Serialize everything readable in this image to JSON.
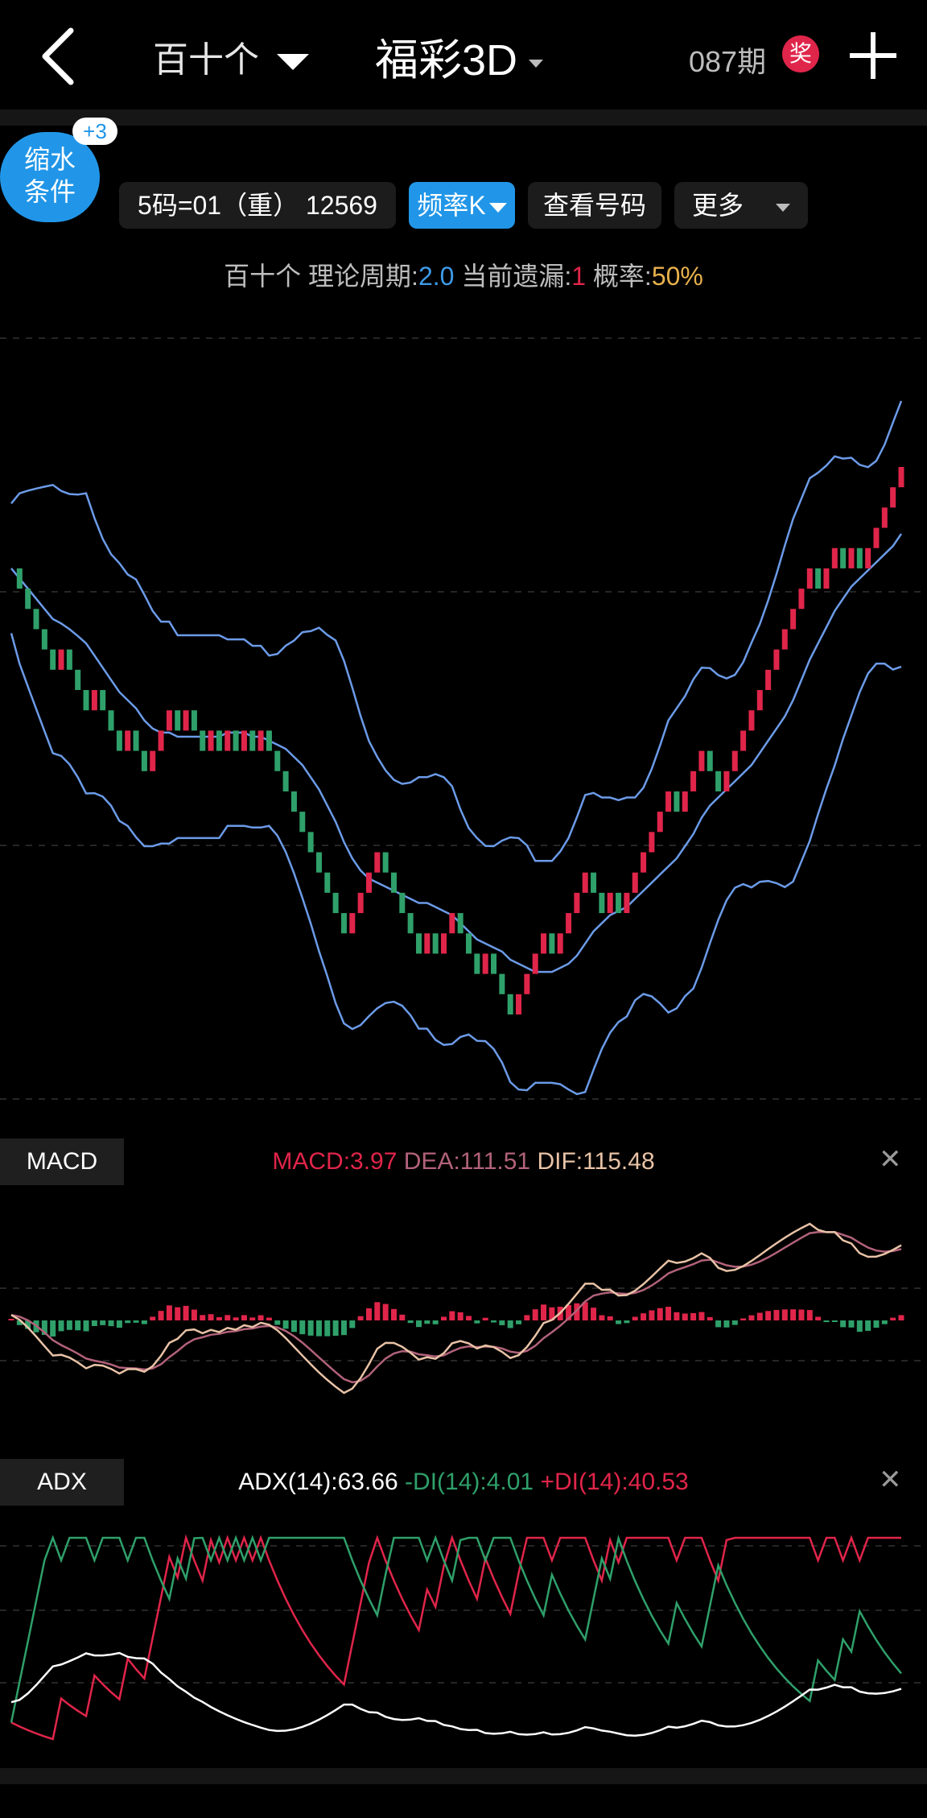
{
  "header": {
    "back_icon": "chevron-left-icon",
    "position_selector": "百十个",
    "game_title": "福彩3D",
    "issue": "087期",
    "prize_badge": "奖",
    "add_icon": "plus-icon"
  },
  "toolbar": {
    "shrink_label_line1": "缩水",
    "shrink_label_line2": "条件",
    "shrink_badge": "+3",
    "filter_label": "5码=01（重） 12569",
    "frequency_label": "频率K",
    "view_numbers_label": "查看号码",
    "more_label": "更多"
  },
  "stats": {
    "prefix": "百十个 理论周期:",
    "period": "2.0",
    "miss_label": " 当前遗漏:",
    "miss": "1",
    "prob_label": " 概率:",
    "prob": "50%"
  },
  "colors": {
    "up": "#e0254a",
    "down": "#2fa06a",
    "band": "#6c9be8",
    "accent": "#2196e8",
    "dif": "#e8c2a6",
    "dea": "#b2627a"
  },
  "macd": {
    "tag": "MACD",
    "macd_text": "MACD:3.97",
    "dea_text": "DEA:111.51",
    "dif_text": "DIF:115.48"
  },
  "adx": {
    "tag": "ADX",
    "adx_text": "ADX(14):63.66",
    "mdi_text": "-DI(14):4.01",
    "pdi_text": "+DI(14):40.53"
  },
  "chart_data": {
    "type": "line",
    "series": [
      {
        "values": [
          12,
          11,
          10,
          9,
          8,
          7,
          8,
          7,
          6,
          5,
          6,
          5,
          4,
          3,
          4,
          3,
          2,
          3,
          4,
          5,
          4,
          5,
          4,
          3,
          4,
          3,
          4,
          3,
          4,
          3,
          4,
          3,
          2,
          1,
          0,
          -1,
          -2,
          -3,
          -4,
          -5,
          -6,
          -5,
          -4,
          -3,
          -2,
          -3,
          -4,
          -5,
          -6,
          -7,
          -6,
          -7,
          -6,
          -5,
          -6,
          -7,
          -8,
          -7,
          -8,
          -9,
          -10,
          -9,
          -8,
          -7,
          -6,
          -7,
          -6,
          -5,
          -4,
          -3,
          -4,
          -5,
          -4,
          -5,
          -4,
          -3,
          -2,
          -1,
          0,
          1,
          0,
          1,
          2,
          3,
          2,
          1,
          2,
          3,
          4,
          5,
          6,
          7,
          8,
          9,
          10,
          11,
          12,
          11,
          12,
          13,
          12,
          13,
          12,
          13,
          14,
          15,
          16,
          17
        ]
      }
    ]
  }
}
